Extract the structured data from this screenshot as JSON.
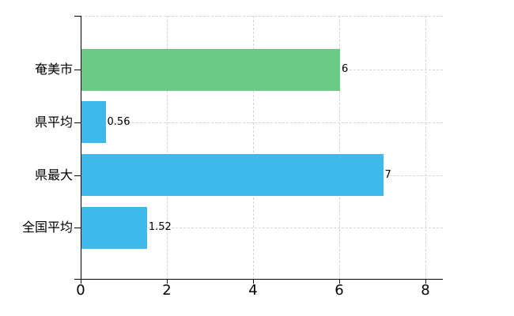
{
  "chart_data": {
    "type": "bar",
    "orientation": "horizontal",
    "categories": [
      "奄美市",
      "県平均",
      "県最大",
      "全国平均"
    ],
    "values": [
      6,
      0.56,
      7,
      1.52
    ],
    "value_labels": [
      "6",
      "0.56",
      "7",
      "1.52"
    ],
    "bar_colors": [
      "#6aca85",
      "#3fb8ec",
      "#3fb8ec",
      "#3fb8ec"
    ],
    "x_ticks": [
      "0",
      "2",
      "4",
      "6",
      "8"
    ],
    "x_tick_values": [
      0,
      2,
      4,
      6,
      8
    ],
    "xlim": [
      0,
      8.4
    ],
    "grid": true,
    "legend": false,
    "xlabel": "",
    "ylabel": "",
    "colors": {
      "green_bar": "#6aca85",
      "blue_bar": "#3fb8ec",
      "gridline": "#d2d7d2",
      "axis": "#000000",
      "text": "#000000",
      "background": "#ffffff"
    }
  }
}
